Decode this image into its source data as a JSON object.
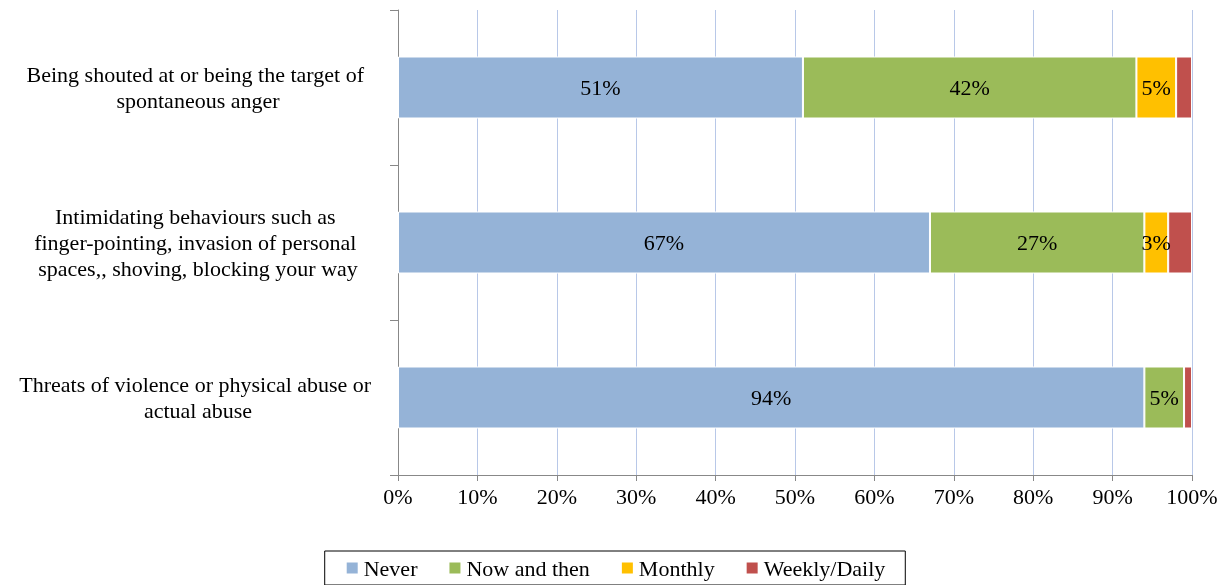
{
  "chart_data": {
    "type": "bar",
    "orientation": "horizontal",
    "stacked": true,
    "categories": [
      "Being shouted at or being the target of spontaneous anger",
      "Intimidating behaviours such as finger-pointing, invasion of personal spaces,, shoving, blocking your way",
      "Threats of violence or physical abuse or actual abuse"
    ],
    "series": [
      {
        "name": "Never",
        "color": "#95b3d7",
        "values": [
          51,
          67,
          94
        ],
        "value_labels": [
          "51%",
          "67%",
          "94%"
        ]
      },
      {
        "name": "Now and then",
        "color": "#9bbb59",
        "values": [
          42,
          27,
          5
        ],
        "value_labels": [
          "42%",
          "27%",
          "5%"
        ]
      },
      {
        "name": "Monthly",
        "color": "#ffc000",
        "values": [
          5,
          3,
          0
        ],
        "value_labels": [
          "5%",
          "3%",
          null
        ]
      },
      {
        "name": "Weekly/Daily",
        "color": "#c0504d",
        "values": [
          2,
          3,
          1
        ],
        "value_labels": [
          null,
          null,
          null
        ]
      }
    ],
    "xlim": [
      0,
      100
    ],
    "xticks": [
      {
        "value": 0,
        "label": "0%"
      },
      {
        "value": 10,
        "label": "10%"
      },
      {
        "value": 20,
        "label": "20%"
      },
      {
        "value": 30,
        "label": "30%"
      },
      {
        "value": 40,
        "label": "40%"
      },
      {
        "value": 50,
        "label": "50%"
      },
      {
        "value": 60,
        "label": "60%"
      },
      {
        "value": 70,
        "label": "70%"
      },
      {
        "value": 80,
        "label": "80%"
      },
      {
        "value": 90,
        "label": "90%"
      },
      {
        "value": 100,
        "label": "100%"
      }
    ],
    "grid": "x",
    "legend": "bottom"
  }
}
